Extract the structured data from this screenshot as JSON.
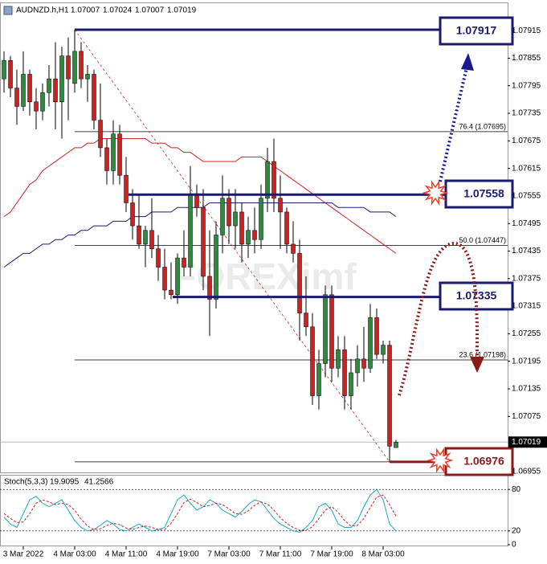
{
  "chart_data": {
    "type": "candlestick",
    "title": "AUDNZD.h,H1",
    "watermark": "FOREXimf",
    "categories": [
      null,
      null,
      null,
      "3 Mar 2022",
      null,
      null,
      null,
      null,
      null,
      null,
      null,
      "4 Mar 03:00",
      null,
      null,
      null,
      null,
      null,
      null,
      null,
      "4 Mar 11:00",
      null,
      null,
      null,
      null,
      null,
      null,
      null,
      "4 Mar 19:00",
      null,
      null,
      null,
      null,
      null,
      null,
      null,
      "7 Mar 03:00",
      null,
      null,
      null,
      null,
      null,
      null,
      null,
      "7 Mar 11:00",
      null,
      null,
      null,
      null,
      null,
      null,
      null,
      "7 Mar 19:00",
      null,
      null,
      null,
      null,
      null,
      null,
      null,
      "8 Mar 03:00",
      null,
      null
    ],
    "ohlc": [
      [
        1.0781,
        1.0787,
        1.0778,
        1.0785
      ],
      [
        1.0785,
        1.0786,
        1.0777,
        1.0779
      ],
      [
        1.0779,
        1.0783,
        1.0771,
        1.0775
      ],
      [
        1.0775,
        1.0787,
        1.0774,
        1.0782
      ],
      [
        1.0782,
        1.0783,
        1.0773,
        1.0776
      ],
      [
        1.0776,
        1.0779,
        1.077,
        1.0774
      ],
      [
        1.0774,
        1.078,
        1.0772,
        1.0778
      ],
      [
        1.0778,
        1.0784,
        1.0775,
        1.0781
      ],
      [
        1.0781,
        1.0789,
        1.077,
        1.0776
      ],
      [
        1.0776,
        1.0788,
        1.0768,
        1.0786
      ],
      [
        1.0786,
        1.079,
        1.0772,
        1.0781
      ],
      [
        1.078,
        1.07917,
        1.0778,
        1.0787
      ],
      [
        1.0787,
        1.0789,
        1.0779,
        1.0781
      ],
      [
        1.0781,
        1.0784,
        1.0776,
        1.0782
      ],
      [
        1.0782,
        1.0783,
        1.077,
        1.0772
      ],
      [
        1.0772,
        1.078,
        1.0764,
        1.0766
      ],
      [
        1.0766,
        1.0768,
        1.0758,
        1.0761
      ],
      [
        1.0761,
        1.0772,
        1.0758,
        1.0769
      ],
      [
        1.0769,
        1.0771,
        1.0758,
        1.076
      ],
      [
        1.076,
        1.0764,
        1.0752,
        1.0754
      ],
      [
        1.0754,
        1.0757,
        1.0746,
        1.0749
      ],
      [
        1.0749,
        1.0756,
        1.0744,
        1.0745
      ],
      [
        1.0745,
        1.0749,
        1.074,
        1.0748
      ],
      [
        1.0748,
        1.0755,
        1.0742,
        1.0744
      ],
      [
        1.0744,
        1.0747,
        1.0737,
        1.074
      ],
      [
        1.074,
        1.0744,
        1.0733,
        1.0735
      ],
      [
        1.0735,
        1.0741,
        1.0733,
        1.0734
      ],
      [
        1.0734,
        1.0743,
        1.0732,
        1.0742
      ],
      [
        1.0742,
        1.0748,
        1.0738,
        1.074
      ],
      [
        1.074,
        1.0762,
        1.0738,
        1.0756
      ],
      [
        1.0756,
        1.0758,
        1.0751,
        1.0753
      ],
      [
        1.0753,
        1.0757,
        1.0735,
        1.0738
      ],
      [
        1.0738,
        1.0748,
        1.0725,
        1.0733
      ],
      [
        1.0733,
        1.075,
        1.0731,
        1.0747
      ],
      [
        1.0747,
        1.076,
        1.0743,
        1.0755
      ],
      [
        1.0755,
        1.0757,
        1.0745,
        1.0749
      ],
      [
        1.0749,
        1.0757,
        1.0744,
        1.0752
      ],
      [
        1.0752,
        1.0754,
        1.0741,
        1.0745
      ],
      [
        1.0745,
        1.0751,
        1.0742,
        1.0748
      ],
      [
        1.0748,
        1.0753,
        1.0743,
        1.0746
      ],
      [
        1.0746,
        1.0758,
        1.0744,
        1.0755
      ],
      [
        1.0755,
        1.0766,
        1.0752,
        1.0763
      ],
      [
        1.0763,
        1.0768,
        1.0752,
        1.0755
      ],
      [
        1.0755,
        1.076,
        1.0744,
        1.0752
      ],
      [
        1.0752,
        1.0753,
        1.0743,
        1.0745
      ],
      [
        1.0745,
        1.075,
        1.0741,
        1.0743
      ],
      [
        1.0743,
        1.0746,
        1.0724,
        1.073
      ],
      [
        1.073,
        1.0738,
        1.0725,
        1.0727
      ],
      [
        1.0727,
        1.073,
        1.071,
        1.0712
      ],
      [
        1.0712,
        1.0722,
        1.0709,
        1.0719
      ],
      [
        1.0719,
        1.0736,
        1.0716,
        1.0734
      ],
      [
        1.0734,
        1.0736,
        1.0715,
        1.0718
      ],
      [
        1.0718,
        1.0725,
        1.0716,
        1.0722
      ],
      [
        1.0722,
        1.0725,
        1.0709,
        1.0712
      ],
      [
        1.0712,
        1.072,
        1.0709,
        1.0717
      ],
      [
        1.0717,
        1.0723,
        1.0714,
        1.072
      ],
      [
        1.072,
        1.0727,
        1.0715,
        1.0718
      ],
      [
        1.0718,
        1.0732,
        1.0717,
        1.0729
      ],
      [
        1.0729,
        1.0731,
        1.072,
        1.0721
      ],
      [
        1.0721,
        1.0724,
        1.0719,
        1.0723
      ],
      [
        1.0723,
        1.0724,
        1.06976,
        1.0701
      ],
      [
        1.07007,
        1.07024,
        1.07007,
        1.07019
      ]
    ],
    "up_color": "#2e8b3e",
    "down_color": "#cc2222",
    "overlays": [
      {
        "color": "#cc2222",
        "values": [
          1.0751,
          1.0752,
          1.0754,
          1.0756,
          1.0758,
          1.0759,
          1.0761,
          1.0762,
          1.0763,
          1.0764,
          1.0765,
          1.0766,
          1.0766,
          1.0767,
          1.0767,
          1.0768,
          1.0768,
          1.0768,
          1.0768,
          1.0768,
          1.0768,
          1.0768,
          1.0768,
          1.0767,
          1.0767,
          1.0767,
          1.0766,
          1.0766,
          1.0765,
          1.0765,
          1.0764,
          1.0763,
          1.0763,
          1.0763,
          1.0763,
          1.0763,
          1.0763,
          1.0764,
          1.0764,
          1.0764,
          1.0764,
          1.0763,
          1.0762,
          1.0761,
          1.076,
          1.0759,
          1.0758,
          1.0757,
          1.0756,
          1.0755,
          1.0754,
          1.0753,
          1.0752,
          1.0751,
          1.075,
          1.0749,
          1.0748,
          1.0747,
          1.0746,
          1.0745,
          1.0744,
          1.0743
        ]
      },
      {
        "color": "#1a1a7a",
        "values": [
          1.074,
          1.0741,
          1.0742,
          1.0743,
          1.0743,
          1.0744,
          1.0745,
          1.0745,
          1.0746,
          1.0746,
          1.0747,
          1.0747,
          1.0748,
          1.0748,
          1.0749,
          1.0749,
          1.0749,
          1.075,
          1.075,
          1.075,
          1.0751,
          1.0751,
          1.0751,
          1.0752,
          1.0752,
          1.0752,
          1.0752,
          1.0753,
          1.0753,
          1.0753,
          1.0753,
          1.0753,
          1.0754,
          1.0754,
          1.0754,
          1.0754,
          1.0754,
          1.0754,
          1.0754,
          1.0754,
          1.0754,
          1.0754,
          1.0754,
          1.0754,
          1.0754,
          1.0754,
          1.0754,
          1.0754,
          1.0754,
          1.0754,
          1.0754,
          1.0754,
          1.0753,
          1.0753,
          1.0753,
          1.0753,
          1.0753,
          1.0752,
          1.0752,
          1.0752,
          1.0752,
          1.0751
        ]
      }
    ],
    "ylim": [
      1.06953,
      1.07973
    ],
    "yticks": [
      1.07915,
      1.07855,
      1.07795,
      1.07735,
      1.07675,
      1.07615,
      1.07555,
      1.07495,
      1.07435,
      1.07375,
      1.07315,
      1.07255,
      1.07195,
      1.07135,
      1.07075,
      1.06955
    ],
    "levels": [
      1.07917,
      1.07558,
      1.07335,
      1.06976
    ],
    "fib": [
      {
        "value": 1.07695,
        "label": "76.4 (1.07695)"
      },
      {
        "value": 1.07447,
        "label": "50.0 (1.07447)"
      },
      {
        "value": 1.07198,
        "label": "23.6 (1.07198)"
      }
    ],
    "stoch": {
      "title": "Stoch(5,3,3)",
      "ylim": [
        0,
        100
      ],
      "yticks": [
        80,
        20,
        0
      ],
      "levels": [
        80,
        20
      ],
      "series": [
        {
          "color": "#1aa7c9",
          "values": [
            40,
            30,
            25,
            45,
            65,
            70,
            60,
            55,
            60,
            65,
            50,
            35,
            25,
            20,
            22,
            28,
            35,
            30,
            22,
            20,
            25,
            30,
            25,
            20,
            22,
            25,
            45,
            65,
            72,
            60,
            50,
            55,
            65,
            60,
            50,
            45,
            40,
            48,
            58,
            65,
            62,
            50,
            38,
            30,
            25,
            20,
            18,
            25,
            35,
            55,
            60,
            50,
            30,
            25,
            25,
            35,
            55,
            72,
            80,
            65,
            30,
            19.9095
          ]
        },
        {
          "color": "#cc2222",
          "values": [
            45,
            38,
            32,
            33,
            45,
            60,
            65,
            62,
            58,
            60,
            58,
            50,
            37,
            27,
            22,
            23,
            28,
            31,
            29,
            24,
            22,
            25,
            27,
            25,
            22,
            22,
            31,
            45,
            61,
            66,
            61,
            55,
            57,
            60,
            58,
            52,
            45,
            44,
            49,
            57,
            62,
            59,
            50,
            39,
            31,
            25,
            21,
            21,
            26,
            38,
            50,
            55,
            47,
            35,
            27,
            28,
            38,
            54,
            69,
            72,
            58,
            41.2566
          ]
        }
      ]
    }
  }
}
